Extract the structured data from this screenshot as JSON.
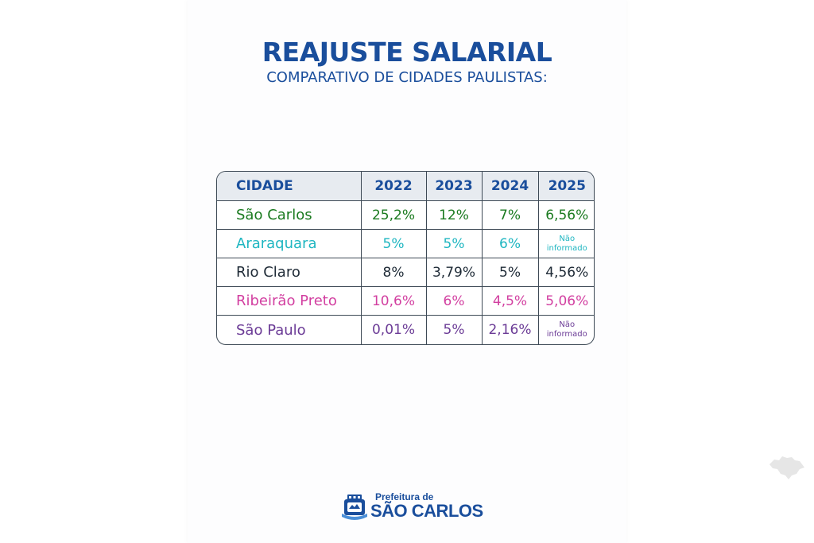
{
  "header": {
    "title": "REAJUSTE SALARIAL",
    "subtitle": "COMPARATIVO DE CIDADES PAULISTAS:"
  },
  "table": {
    "columns": [
      "CIDADE",
      "2022",
      "2023",
      "2024",
      "2025"
    ],
    "rows": [
      {
        "city": "São Carlos",
        "values": [
          "25,2%",
          "12%",
          "7%",
          "6,56%"
        ],
        "color": "#1a7a1f"
      },
      {
        "city": "Araraquara",
        "values": [
          "5%",
          "5%",
          "6%",
          "Não informado"
        ],
        "color": "#1fb6c1"
      },
      {
        "city": "Rio Claro",
        "values": [
          "8%",
          "3,79%",
          "5%",
          "4,56%"
        ],
        "color": "#1e2a36"
      },
      {
        "city": "Ribeirão Preto",
        "values": [
          "10,6%",
          "6%",
          "4,5%",
          "5,06%"
        ],
        "color": "#d23fa0"
      },
      {
        "city": "São Paulo",
        "values": [
          "0,01%",
          "5%",
          "2,16%",
          "Não informado"
        ],
        "color": "#6b3b96"
      }
    ]
  },
  "logo": {
    "line1": "Prefeitura de",
    "line2": "SÃO CARLOS",
    "icon": "city-crest-icon"
  },
  "decor": {
    "icon": "sao-paulo-state-map-icon"
  },
  "colors": {
    "primary": "#1a4e9c",
    "header_bg": "#e7ebf0",
    "border": "#3e4a56"
  }
}
